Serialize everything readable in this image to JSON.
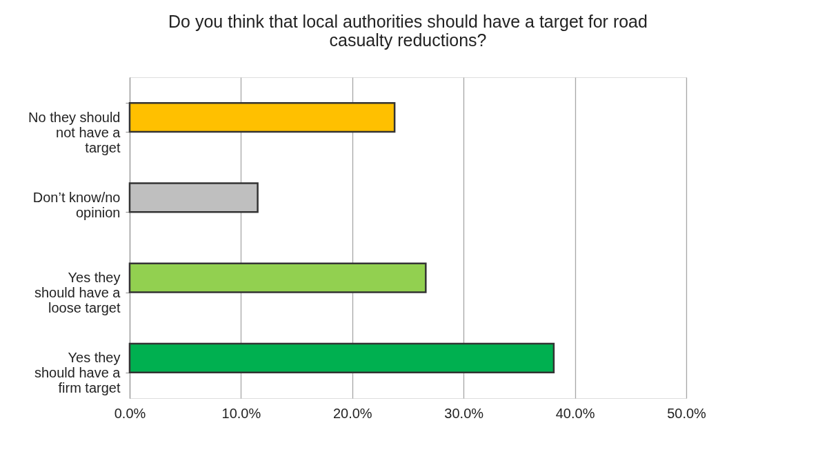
{
  "chart_data": {
    "type": "bar",
    "orientation": "horizontal",
    "title": "Do you think that local authorities should have a target for road casualty reductions?",
    "categories": [
      "No they should not have a target",
      "Don’t know/no opinion",
      "Yes they should have a loose target",
      "Yes they should have a firm target"
    ],
    "values": [
      23.8,
      11.5,
      26.6,
      38.1
    ],
    "colors": [
      "#ffc000",
      "#bfbfbf",
      "#92d050",
      "#00b050"
    ],
    "xlim": [
      0,
      50
    ],
    "xticks": [
      {
        "value": 0,
        "label": "0.0%"
      },
      {
        "value": 10,
        "label": "10.0%"
      },
      {
        "value": 20,
        "label": "20.0%"
      },
      {
        "value": 30,
        "label": "30.0%"
      },
      {
        "value": 40,
        "label": "40.0%"
      },
      {
        "value": 50,
        "label": "50.0%"
      }
    ],
    "grid": "x"
  }
}
